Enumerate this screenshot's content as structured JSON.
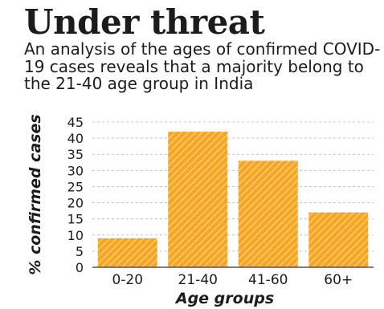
{
  "header": {
    "title": "Under threat",
    "subtitle": "An analysis of the ages of confirmed COVID-19 cases reveals that a majority belong to the 21-40 age group in India"
  },
  "chart_data": {
    "type": "bar",
    "title": "Under threat",
    "subtitle": "An analysis of the ages of confirmed COVID-19 cases reveals that a majority belong to the 21-40 age group in India",
    "categories": [
      "0-20",
      "21-40",
      "41-60",
      "60+"
    ],
    "values": [
      9,
      42,
      33,
      17
    ],
    "xlabel": "Age groups",
    "ylabel": "% confirmed cases",
    "ylim": [
      0,
      45
    ],
    "yticks": [
      0,
      5,
      10,
      15,
      20,
      25,
      30,
      35,
      40,
      45
    ],
    "grid": true,
    "bar_color": "#f5a623",
    "hatch_color": "#fbd38a"
  }
}
